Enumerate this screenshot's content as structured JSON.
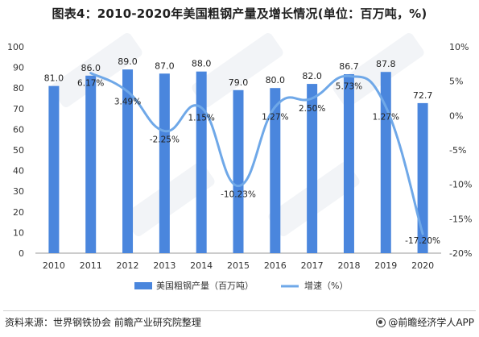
{
  "title": "图表4：2010-2020年美国粗钢产量及增长情况(单位：百万吨，%)",
  "source": "资料来源：世界钢铁协会 前瞻产业研究院整理",
  "brand": "@前瞻经济学人APP",
  "brand_icon": "brand-logo-icon",
  "colors": {
    "bar": "#4a86dd",
    "line": "#6fa8e8"
  },
  "chart_data": {
    "type": "bar",
    "categories": [
      "2010",
      "2011",
      "2012",
      "2013",
      "2014",
      "2015",
      "2016",
      "2017",
      "2018",
      "2019",
      "2020"
    ],
    "series": [
      {
        "name": "美国粗钢产量（百万吨）",
        "type": "bar",
        "axis": "left",
        "values": [
          81.0,
          86.0,
          89.0,
          87.0,
          88.0,
          79.0,
          80.0,
          82.0,
          86.7,
          87.8,
          72.7
        ],
        "labels": [
          "81.0",
          "86.0",
          "89.0",
          "87.0",
          "88.0",
          "79.0",
          "80.0",
          "82.0",
          "86.7",
          "87.8",
          "72.7"
        ]
      },
      {
        "name": "增速（%）",
        "type": "line",
        "axis": "right",
        "values": [
          null,
          6.17,
          3.49,
          -2.25,
          1.15,
          -10.23,
          1.27,
          2.5,
          5.73,
          1.27,
          -17.2
        ],
        "labels": [
          null,
          "6.17%",
          "3.49%",
          "-2.25%",
          "1.15%",
          "-10.23%",
          "1.27%",
          "2.50%",
          "5.73%",
          "1.27%",
          "-17.20%"
        ]
      }
    ],
    "left_axis": {
      "min": 0,
      "max": 100,
      "step": 10,
      "ticks": [
        "0",
        "10",
        "20",
        "30",
        "40",
        "50",
        "60",
        "70",
        "80",
        "90",
        "100"
      ]
    },
    "right_axis": {
      "min": -20,
      "max": 10,
      "step": 5,
      "ticks": [
        "-20%",
        "-15%",
        "-10%",
        "-5%",
        "0%",
        "5%",
        "10%"
      ]
    },
    "grid": false,
    "legend_position": "bottom-center"
  }
}
